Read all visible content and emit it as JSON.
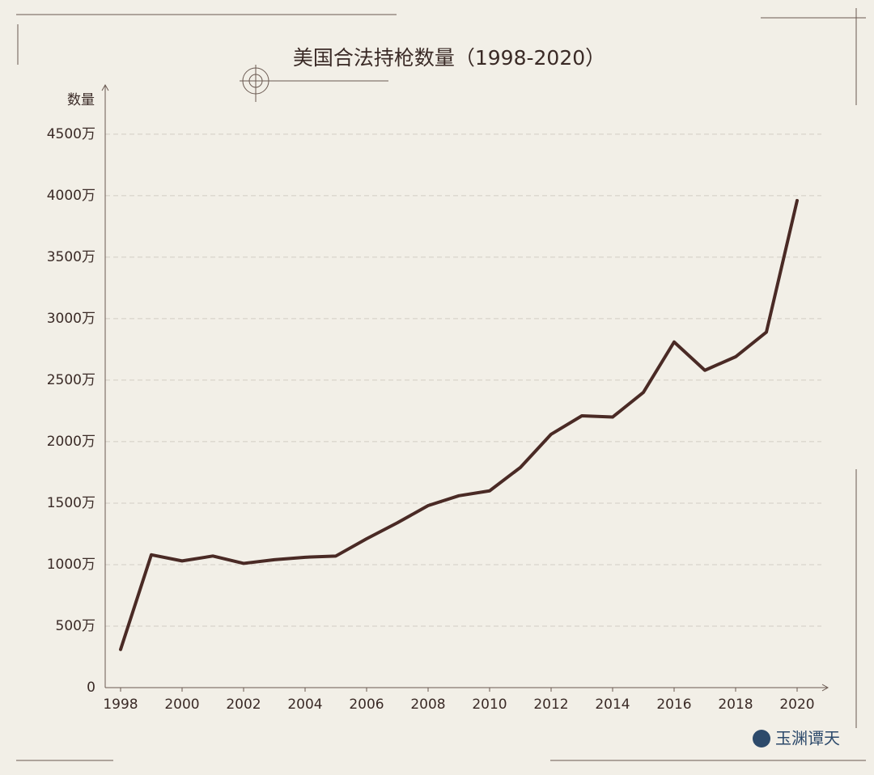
{
  "chart_data": {
    "type": "line",
    "title": "美国合法持枪数量（1998-2020）",
    "y_label": "数量",
    "watermark": "玉渊谭天",
    "x": [
      1998,
      1999,
      2000,
      2001,
      2002,
      2003,
      2004,
      2005,
      2006,
      2007,
      2008,
      2009,
      2010,
      2011,
      2012,
      2013,
      2014,
      2015,
      2016,
      2017,
      2018,
      2019,
      2020
    ],
    "series": [
      {
        "name": "数量",
        "color": "#4a2a25",
        "values": [
          310,
          1080,
          1030,
          1070,
          1010,
          1040,
          1060,
          1070,
          1210,
          1340,
          1480,
          1560,
          1600,
          1790,
          2060,
          2210,
          2200,
          2400,
          2810,
          2580,
          2690,
          2890,
          3960
        ]
      }
    ],
    "xlim": [
      1997.5,
      2021
    ],
    "xticks": [
      1998,
      2000,
      2002,
      2004,
      2006,
      2008,
      2010,
      2012,
      2014,
      2016,
      2018,
      2020
    ],
    "ylim": [
      0,
      4900
    ],
    "yticks": [
      0,
      {
        "value": 500,
        "label": "500万"
      },
      {
        "value": 1000,
        "label": "1000万"
      },
      {
        "value": 2000,
        "label": "2000万"
      },
      {
        "value": 1500,
        "label": "1500万"
      },
      {
        "value": 2500,
        "label": "2500万"
      },
      {
        "value": 3000,
        "label": "3000万"
      },
      {
        "value": 3500,
        "label": "3500万"
      },
      {
        "value": 4000,
        "label": "4000万"
      },
      {
        "value": 4500,
        "label": "4500万"
      }
    ],
    "grid": true
  }
}
